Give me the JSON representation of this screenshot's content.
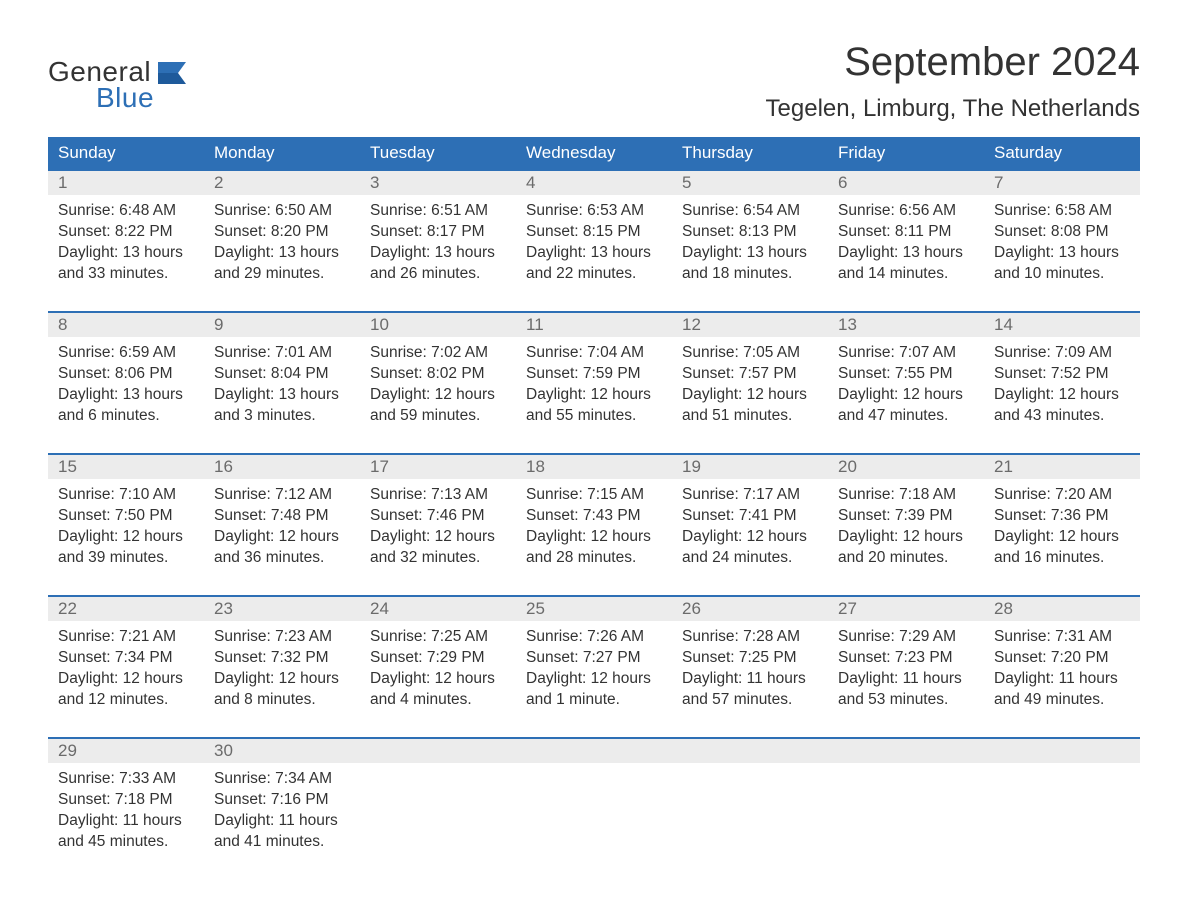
{
  "brand": {
    "general": "General",
    "blue": "Blue"
  },
  "title": "September 2024",
  "location": "Tegelen, Limburg, The Netherlands",
  "colors": {
    "header_bg": "#2d6fb5",
    "header_text": "#ffffff",
    "daynum_bg": "#ececec",
    "daynum_text": "#6b6b6b",
    "body_text": "#333333",
    "week_border": "#2d6fb5",
    "page_bg": "#ffffff"
  },
  "typography": {
    "title_fontsize": 40,
    "location_fontsize": 24,
    "dayheader_fontsize": 17,
    "cell_fontsize": 15.5
  },
  "days_of_week": [
    "Sunday",
    "Monday",
    "Tuesday",
    "Wednesday",
    "Thursday",
    "Friday",
    "Saturday"
  ],
  "weeks": [
    [
      {
        "n": "1",
        "sunrise": "6:48 AM",
        "sunset": "8:22 PM",
        "daylight": "13 hours and 33 minutes."
      },
      {
        "n": "2",
        "sunrise": "6:50 AM",
        "sunset": "8:20 PM",
        "daylight": "13 hours and 29 minutes."
      },
      {
        "n": "3",
        "sunrise": "6:51 AM",
        "sunset": "8:17 PM",
        "daylight": "13 hours and 26 minutes."
      },
      {
        "n": "4",
        "sunrise": "6:53 AM",
        "sunset": "8:15 PM",
        "daylight": "13 hours and 22 minutes."
      },
      {
        "n": "5",
        "sunrise": "6:54 AM",
        "sunset": "8:13 PM",
        "daylight": "13 hours and 18 minutes."
      },
      {
        "n": "6",
        "sunrise": "6:56 AM",
        "sunset": "8:11 PM",
        "daylight": "13 hours and 14 minutes."
      },
      {
        "n": "7",
        "sunrise": "6:58 AM",
        "sunset": "8:08 PM",
        "daylight": "13 hours and 10 minutes."
      }
    ],
    [
      {
        "n": "8",
        "sunrise": "6:59 AM",
        "sunset": "8:06 PM",
        "daylight": "13 hours and 6 minutes."
      },
      {
        "n": "9",
        "sunrise": "7:01 AM",
        "sunset": "8:04 PM",
        "daylight": "13 hours and 3 minutes."
      },
      {
        "n": "10",
        "sunrise": "7:02 AM",
        "sunset": "8:02 PM",
        "daylight": "12 hours and 59 minutes."
      },
      {
        "n": "11",
        "sunrise": "7:04 AM",
        "sunset": "7:59 PM",
        "daylight": "12 hours and 55 minutes."
      },
      {
        "n": "12",
        "sunrise": "7:05 AM",
        "sunset": "7:57 PM",
        "daylight": "12 hours and 51 minutes."
      },
      {
        "n": "13",
        "sunrise": "7:07 AM",
        "sunset": "7:55 PM",
        "daylight": "12 hours and 47 minutes."
      },
      {
        "n": "14",
        "sunrise": "7:09 AM",
        "sunset": "7:52 PM",
        "daylight": "12 hours and 43 minutes."
      }
    ],
    [
      {
        "n": "15",
        "sunrise": "7:10 AM",
        "sunset": "7:50 PM",
        "daylight": "12 hours and 39 minutes."
      },
      {
        "n": "16",
        "sunrise": "7:12 AM",
        "sunset": "7:48 PM",
        "daylight": "12 hours and 36 minutes."
      },
      {
        "n": "17",
        "sunrise": "7:13 AM",
        "sunset": "7:46 PM",
        "daylight": "12 hours and 32 minutes."
      },
      {
        "n": "18",
        "sunrise": "7:15 AM",
        "sunset": "7:43 PM",
        "daylight": "12 hours and 28 minutes."
      },
      {
        "n": "19",
        "sunrise": "7:17 AM",
        "sunset": "7:41 PM",
        "daylight": "12 hours and 24 minutes."
      },
      {
        "n": "20",
        "sunrise": "7:18 AM",
        "sunset": "7:39 PM",
        "daylight": "12 hours and 20 minutes."
      },
      {
        "n": "21",
        "sunrise": "7:20 AM",
        "sunset": "7:36 PM",
        "daylight": "12 hours and 16 minutes."
      }
    ],
    [
      {
        "n": "22",
        "sunrise": "7:21 AM",
        "sunset": "7:34 PM",
        "daylight": "12 hours and 12 minutes."
      },
      {
        "n": "23",
        "sunrise": "7:23 AM",
        "sunset": "7:32 PM",
        "daylight": "12 hours and 8 minutes."
      },
      {
        "n": "24",
        "sunrise": "7:25 AM",
        "sunset": "7:29 PM",
        "daylight": "12 hours and 4 minutes."
      },
      {
        "n": "25",
        "sunrise": "7:26 AM",
        "sunset": "7:27 PM",
        "daylight": "12 hours and 1 minute."
      },
      {
        "n": "26",
        "sunrise": "7:28 AM",
        "sunset": "7:25 PM",
        "daylight": "11 hours and 57 minutes."
      },
      {
        "n": "27",
        "sunrise": "7:29 AM",
        "sunset": "7:23 PM",
        "daylight": "11 hours and 53 minutes."
      },
      {
        "n": "28",
        "sunrise": "7:31 AM",
        "sunset": "7:20 PM",
        "daylight": "11 hours and 49 minutes."
      }
    ],
    [
      {
        "n": "29",
        "sunrise": "7:33 AM",
        "sunset": "7:18 PM",
        "daylight": "11 hours and 45 minutes."
      },
      {
        "n": "30",
        "sunrise": "7:34 AM",
        "sunset": "7:16 PM",
        "daylight": "11 hours and 41 minutes."
      },
      null,
      null,
      null,
      null,
      null
    ]
  ],
  "labels": {
    "sunrise": "Sunrise: ",
    "sunset": "Sunset: ",
    "daylight": "Daylight: "
  }
}
